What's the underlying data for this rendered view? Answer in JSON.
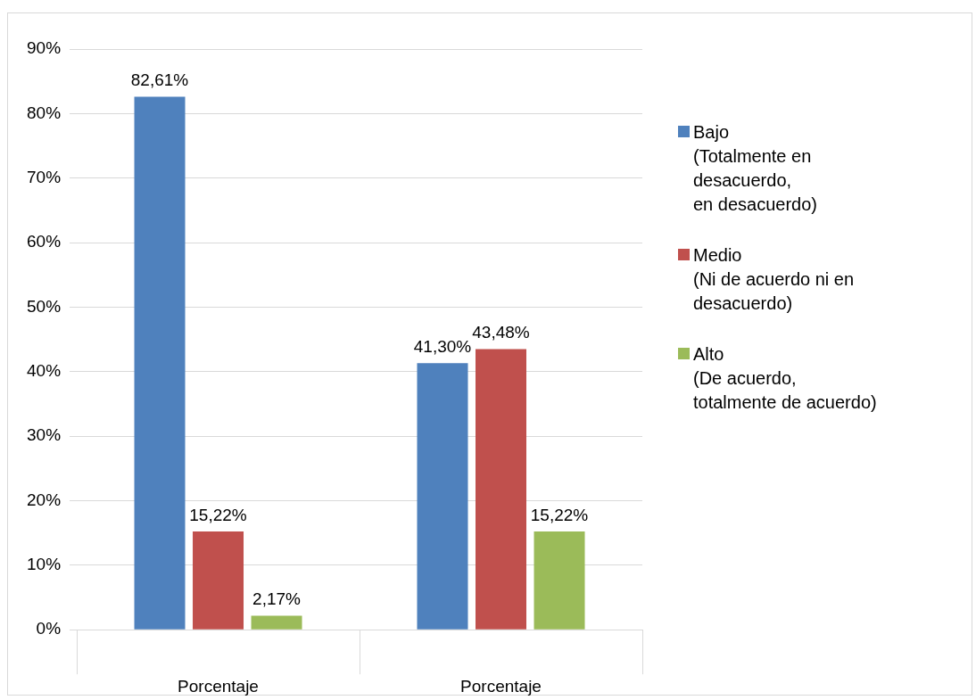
{
  "chart_data": {
    "type": "bar",
    "categories": [
      "Porcentaje",
      "Porcentaje"
    ],
    "series": [
      {
        "name": "Bajo\n(Totalmente en\ndesacuerdo,\nen desacuerdo)",
        "color": "#4f81bd",
        "values": [
          82.61,
          41.3
        ],
        "value_labels": [
          "82,61%",
          "41,30%"
        ]
      },
      {
        "name": "Medio\n(Ni de acuerdo ni en\ndesacuerdo)",
        "color": "#c0504d",
        "values": [
          15.22,
          43.48
        ],
        "value_labels": [
          "15,22%",
          "43,48%"
        ]
      },
      {
        "name": "Alto\n(De acuerdo,\ntotalmente de acuerdo)",
        "color": "#9bbb59",
        "values": [
          2.17,
          15.22
        ],
        "value_labels": [
          "2,17%",
          "15,22%"
        ]
      }
    ],
    "ylim": [
      0,
      90
    ],
    "yticks": [
      {
        "value": 0,
        "label": "0%"
      },
      {
        "value": 10,
        "label": "10%"
      },
      {
        "value": 20,
        "label": "20%"
      },
      {
        "value": 30,
        "label": "30%"
      },
      {
        "value": 40,
        "label": "40%"
      },
      {
        "value": 50,
        "label": "50%"
      },
      {
        "value": 60,
        "label": "60%"
      },
      {
        "value": 70,
        "label": "70%"
      },
      {
        "value": 80,
        "label": "80%"
      },
      {
        "value": 90,
        "label": "90%"
      }
    ],
    "grid": "y",
    "legend": "right"
  }
}
